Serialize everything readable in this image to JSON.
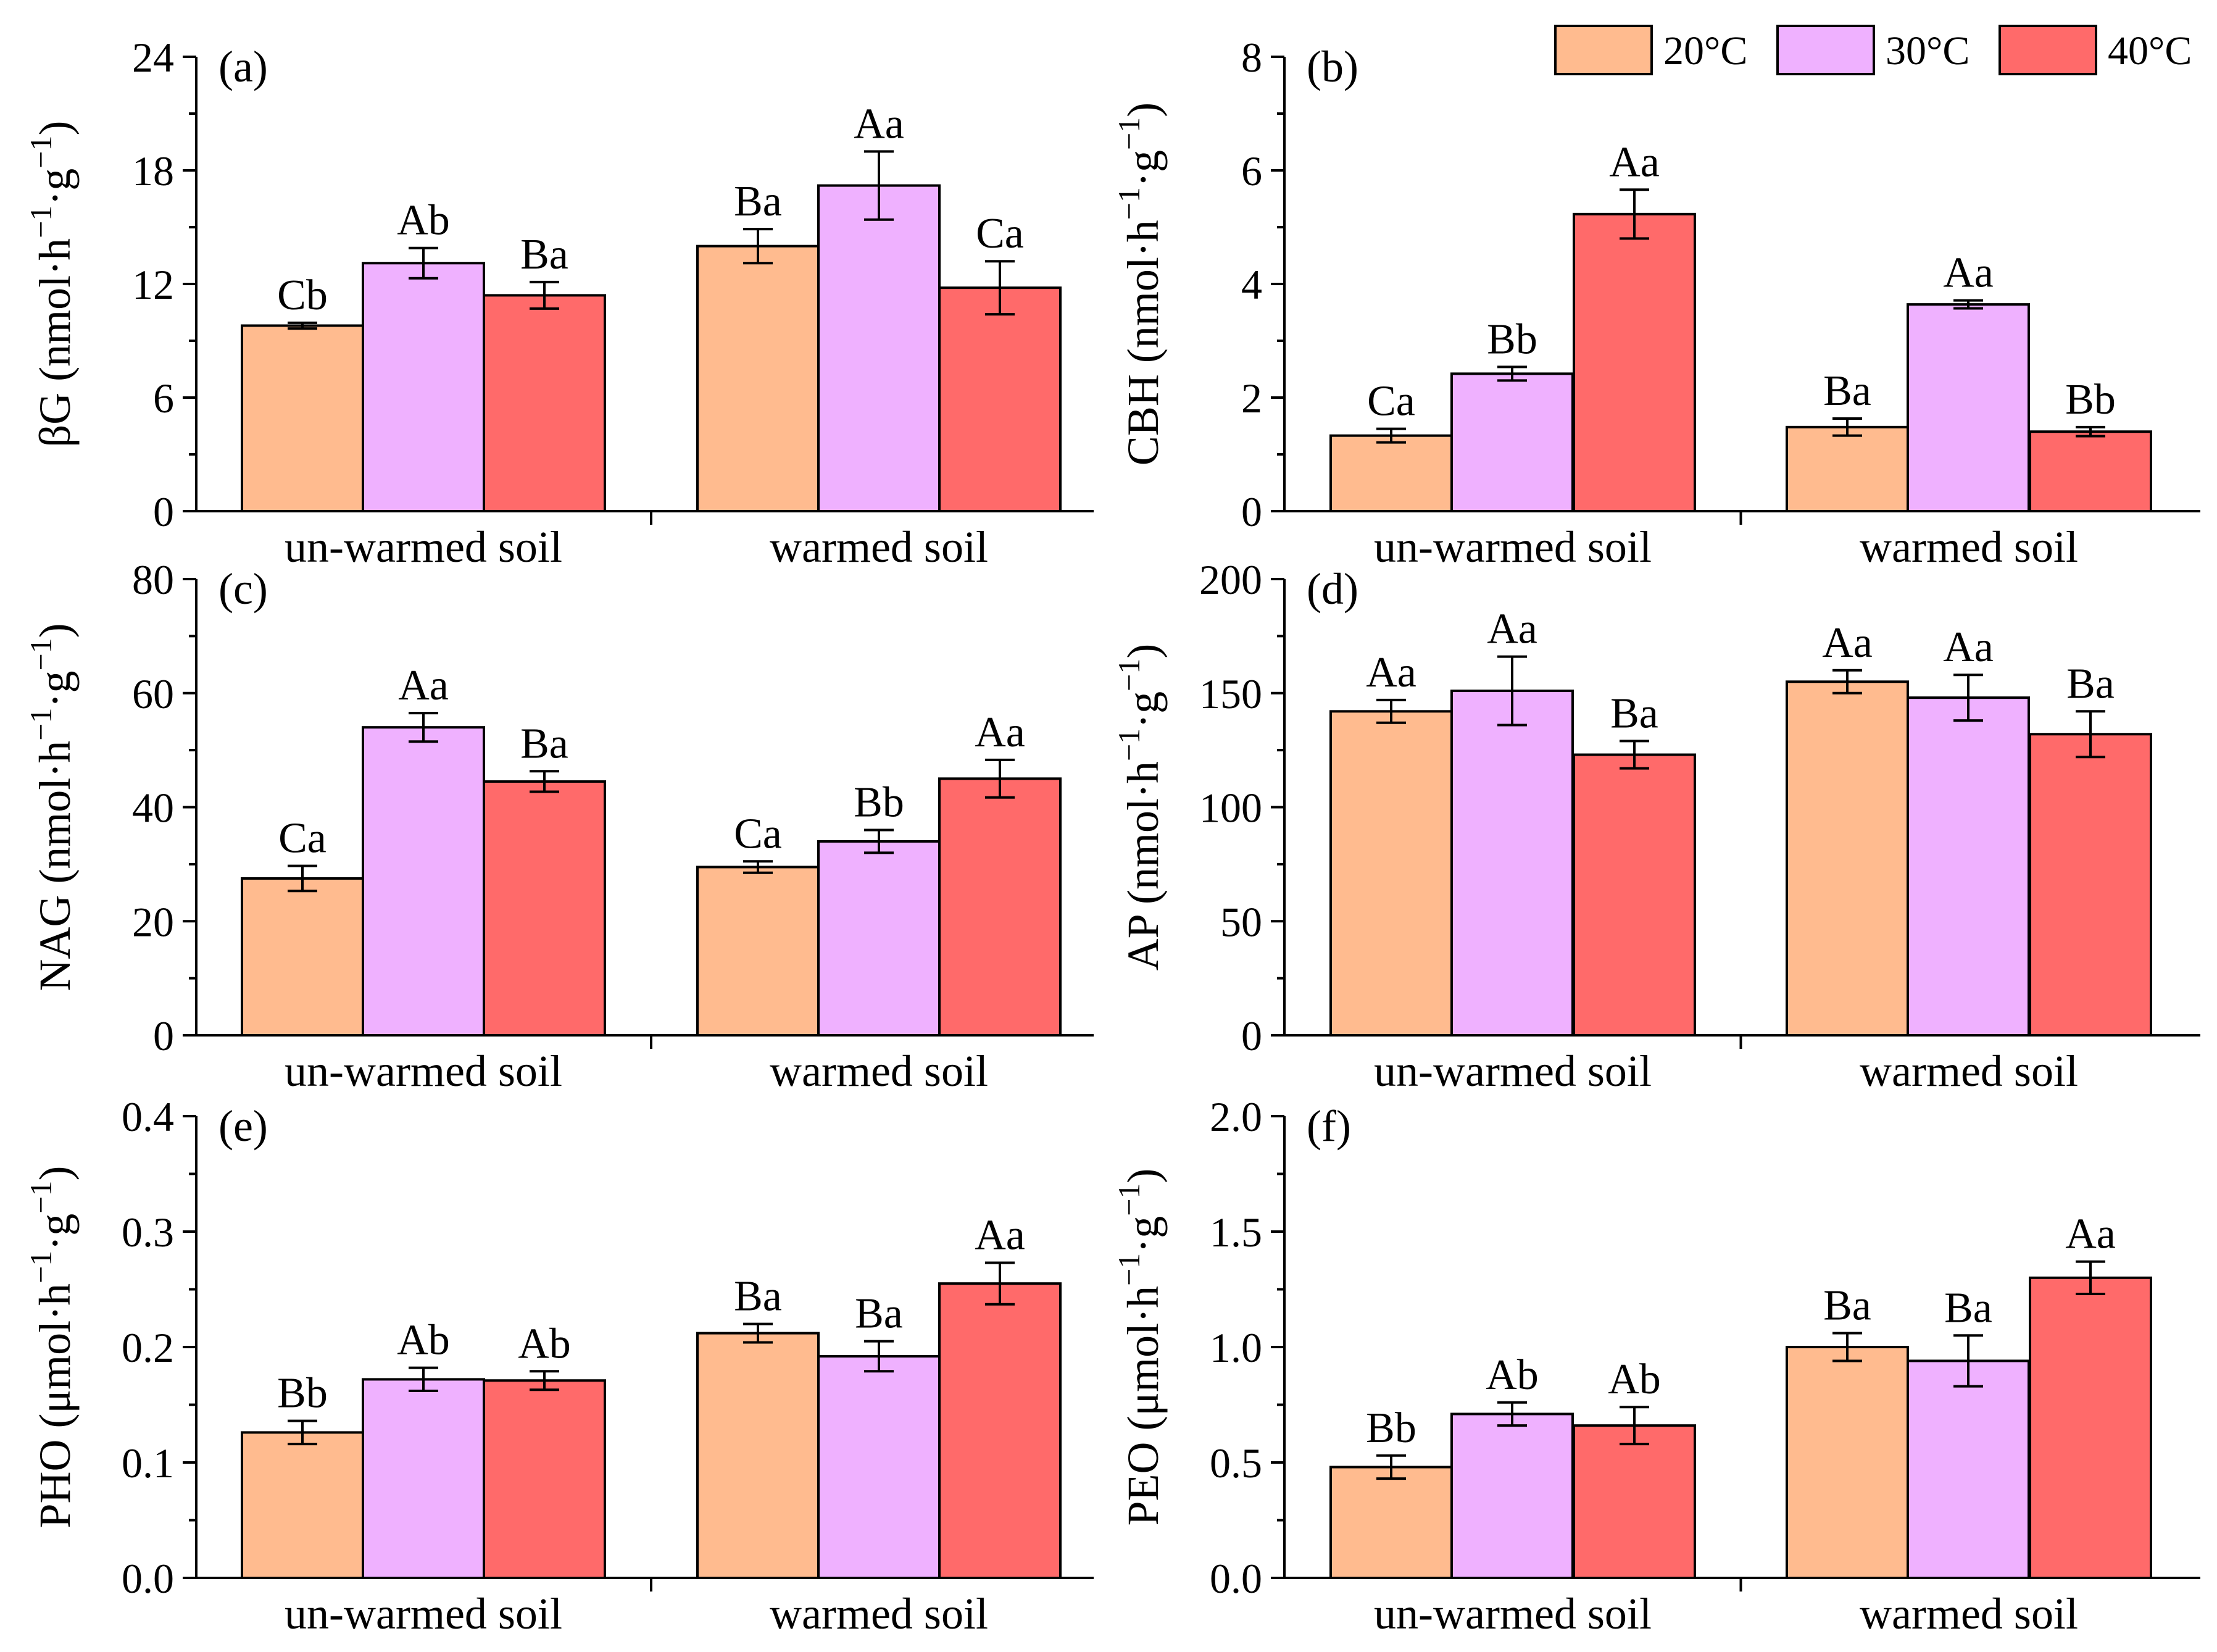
{
  "legend": [
    "20°C",
    "30°C",
    "40°C"
  ],
  "colors": [
    "#FFBB8F",
    "#EFB1FF",
    "#FF6A6A"
  ],
  "chart_data": [
    {
      "type": "bar",
      "panel": "(a)",
      "ylabel_main": "βG (nmol·h",
      "ylabel_sup1": "−1",
      "ylabel_mid": "·g",
      "ylabel_sup2": "−1",
      "ylabel_end": ")",
      "ylim": [
        0,
        24
      ],
      "yticks": [
        "0",
        "6",
        "12",
        "18",
        "24"
      ],
      "categories": [
        "un-warmed soil",
        "warmed soil"
      ],
      "series": [
        {
          "name": "20°C",
          "values": [
            9.8,
            14.0
          ],
          "errors": [
            0.15,
            0.9
          ],
          "labels": [
            "Cb",
            "Ba"
          ]
        },
        {
          "name": "30°C",
          "values": [
            13.1,
            17.2
          ],
          "errors": [
            0.8,
            1.8
          ],
          "labels": [
            "Ab",
            "Aa"
          ]
        },
        {
          "name": "40°C",
          "values": [
            11.4,
            11.8
          ],
          "errors": [
            0.7,
            1.4
          ],
          "labels": [
            "Ba",
            "Ca"
          ]
        }
      ]
    },
    {
      "type": "bar",
      "panel": "(b)",
      "ylabel_main": "CBH (nmol·h",
      "ylabel_sup1": "−1",
      "ylabel_mid": "·g",
      "ylabel_sup2": "−1",
      "ylabel_end": ")",
      "ylim": [
        0,
        8
      ],
      "yticks": [
        "0",
        "2",
        "4",
        "6",
        "8"
      ],
      "categories": [
        "un-warmed soil",
        "warmed soil"
      ],
      "series": [
        {
          "name": "20°C",
          "values": [
            1.33,
            1.48
          ],
          "errors": [
            0.12,
            0.15
          ],
          "labels": [
            "Ca",
            "Ba"
          ]
        },
        {
          "name": "30°C",
          "values": [
            2.42,
            3.64
          ],
          "errors": [
            0.12,
            0.07
          ],
          "labels": [
            "Bb",
            "Aa"
          ]
        },
        {
          "name": "40°C",
          "values": [
            5.23,
            1.4
          ],
          "errors": [
            0.43,
            0.08
          ],
          "labels": [
            "Aa",
            "Bb"
          ]
        }
      ]
    },
    {
      "type": "bar",
      "panel": "(c)",
      "ylabel_main": "NAG (nmol·h",
      "ylabel_sup1": "−1",
      "ylabel_mid": "·g",
      "ylabel_sup2": "−1",
      "ylabel_end": ")",
      "ylim": [
        0,
        80
      ],
      "yticks": [
        "0",
        "20",
        "40",
        "60",
        "80"
      ],
      "categories": [
        "un-warmed soil",
        "warmed soil"
      ],
      "series": [
        {
          "name": "20°C",
          "values": [
            27.5,
            29.5
          ],
          "errors": [
            2.2,
            1.0
          ],
          "labels": [
            "Ca",
            "Ca"
          ]
        },
        {
          "name": "30°C",
          "values": [
            54.0,
            34.0
          ],
          "errors": [
            2.5,
            2.0
          ],
          "labels": [
            "Aa",
            "Bb"
          ]
        },
        {
          "name": "40°C",
          "values": [
            44.5,
            45.0
          ],
          "errors": [
            1.8,
            3.3
          ],
          "labels": [
            "Ba",
            "Aa"
          ]
        }
      ]
    },
    {
      "type": "bar",
      "panel": "(d)",
      "ylabel_main": "AP (nmol·h",
      "ylabel_sup1": "−1",
      "ylabel_mid": "·g",
      "ylabel_sup2": "−1",
      "ylabel_end": ")",
      "ylim": [
        0,
        200
      ],
      "yticks": [
        "0",
        "50",
        "100",
        "150",
        "200"
      ],
      "categories": [
        "un-warmed soil",
        "warmed soil"
      ],
      "series": [
        {
          "name": "20°C",
          "values": [
            142,
            155
          ],
          "errors": [
            5,
            5
          ],
          "labels": [
            "Aa",
            "Aa"
          ]
        },
        {
          "name": "30°C",
          "values": [
            151,
            148
          ],
          "errors": [
            15,
            10
          ],
          "labels": [
            "Aa",
            "Aa"
          ]
        },
        {
          "name": "40°C",
          "values": [
            123,
            132
          ],
          "errors": [
            6,
            10
          ],
          "labels": [
            "Ba",
            "Ba"
          ]
        }
      ]
    },
    {
      "type": "bar",
      "panel": "(e)",
      "ylabel_main": "PHO (μmol·h",
      "ylabel_sup1": "−1",
      "ylabel_mid": "·g",
      "ylabel_sup2": "−1",
      "ylabel_end": ")",
      "ylim": [
        0,
        0.4
      ],
      "yticks": [
        "0.0",
        "0.1",
        "0.2",
        "0.3",
        "0.4"
      ],
      "categories": [
        "un-warmed soil",
        "warmed soil"
      ],
      "series": [
        {
          "name": "20°C",
          "values": [
            0.126,
            0.212
          ],
          "errors": [
            0.01,
            0.008
          ],
          "labels": [
            "Bb",
            "Ba"
          ]
        },
        {
          "name": "30°C",
          "values": [
            0.172,
            0.192
          ],
          "errors": [
            0.01,
            0.013
          ],
          "labels": [
            "Ab",
            "Ba"
          ]
        },
        {
          "name": "40°C",
          "values": [
            0.171,
            0.255
          ],
          "errors": [
            0.008,
            0.018
          ],
          "labels": [
            "Ab",
            "Aa"
          ]
        }
      ]
    },
    {
      "type": "bar",
      "panel": "(f)",
      "ylabel_main": "PEO (μmol·h",
      "ylabel_sup1": "−1",
      "ylabel_mid": "·g",
      "ylabel_sup2": "−1",
      "ylabel_end": ")",
      "ylim": [
        0,
        2.0
      ],
      "yticks": [
        "0.0",
        "0.5",
        "1.0",
        "1.5",
        "2.0"
      ],
      "categories": [
        "un-warmed soil",
        "warmed soil"
      ],
      "series": [
        {
          "name": "20°C",
          "values": [
            0.48,
            1.0
          ],
          "errors": [
            0.05,
            0.06
          ],
          "labels": [
            "Bb",
            "Ba"
          ]
        },
        {
          "name": "30°C",
          "values": [
            0.71,
            0.94
          ],
          "errors": [
            0.05,
            0.11
          ],
          "labels": [
            "Ab",
            "Ba"
          ]
        },
        {
          "name": "40°C",
          "values": [
            0.66,
            1.3
          ],
          "errors": [
            0.08,
            0.07
          ],
          "labels": [
            "Ab",
            "Aa"
          ]
        }
      ]
    }
  ]
}
